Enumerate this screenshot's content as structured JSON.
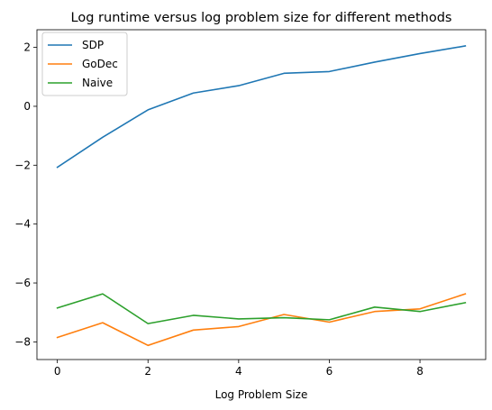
{
  "chart_data": {
    "type": "line",
    "title": "Log runtime versus log problem size for different methods",
    "xlabel": "Log Problem Size",
    "ylabel": "",
    "x": [
      0,
      1,
      2,
      3,
      4,
      5,
      6,
      7,
      8,
      9
    ],
    "xlim": [
      -0.45,
      9.45
    ],
    "ylim": [
      -8.6,
      2.6
    ],
    "xticks": [
      0,
      2,
      4,
      6,
      8
    ],
    "yticks": [
      2,
      0,
      -2,
      -4,
      -6,
      -8
    ],
    "grid": false,
    "legend_position": "top-left",
    "series": [
      {
        "name": "SDP",
        "color": "#1f77b4",
        "values": [
          -2.07,
          -1.05,
          -0.12,
          0.45,
          0.7,
          1.12,
          1.18,
          1.5,
          1.79,
          2.05
        ]
      },
      {
        "name": "GoDec",
        "color": "#ff7f0e",
        "values": [
          -7.85,
          -7.35,
          -8.12,
          -7.6,
          -7.48,
          -7.07,
          -7.33,
          -6.97,
          -6.88,
          -6.37
        ]
      },
      {
        "name": "Naive",
        "color": "#2ca02c",
        "values": [
          -6.85,
          -6.37,
          -7.38,
          -7.1,
          -7.22,
          -7.18,
          -7.25,
          -6.82,
          -6.97,
          -6.67
        ]
      }
    ]
  }
}
